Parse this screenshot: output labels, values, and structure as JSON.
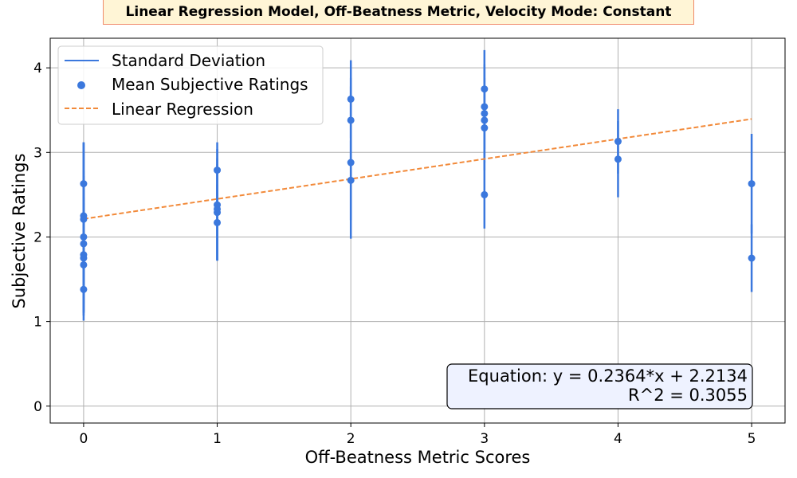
{
  "chart_data": {
    "type": "scatter",
    "title": "Linear Regression Model, Off-Beatness Metric, Velocity Mode: Constant",
    "xlabel": "Off-Beatness Metric Scores",
    "ylabel": "Subjective Ratings",
    "xlim": [
      -0.25,
      5.25
    ],
    "ylim": [
      -0.2,
      4.35
    ],
    "xticks": [
      0,
      1,
      2,
      3,
      4,
      5
    ],
    "yticks": [
      0,
      1,
      2,
      3,
      4
    ],
    "grid": true,
    "legend_position": "top-left",
    "legend": [
      "Standard Deviation",
      "Mean Subjective Ratings",
      "Linear Regression"
    ],
    "colors": {
      "points": "#3b78dd",
      "regression": "#f28a3a",
      "title_bg": "#fff5d6",
      "title_border": "#f08a6a",
      "eq_bg": "#eef2ff"
    },
    "series": [
      {
        "name": "Mean Subjective Ratings",
        "points": [
          {
            "x": 0,
            "y": 2.63,
            "sd": 0.49
          },
          {
            "x": 0,
            "y": 2.25,
            "sd": 0.87
          },
          {
            "x": 0,
            "y": 2.21,
            "sd": 0.9
          },
          {
            "x": 0,
            "y": 2.0,
            "sd": 0.78
          },
          {
            "x": 0,
            "y": 1.92,
            "sd": 0.8
          },
          {
            "x": 0,
            "y": 1.79,
            "sd": 0.68
          },
          {
            "x": 0,
            "y": 1.75,
            "sd": 0.65
          },
          {
            "x": 0,
            "y": 1.67,
            "sd": 0.6
          },
          {
            "x": 0,
            "y": 1.38,
            "sd": 0.37
          },
          {
            "x": 1,
            "y": 2.79,
            "sd": 0.33
          },
          {
            "x": 1,
            "y": 2.38,
            "sd": 0.66
          },
          {
            "x": 1,
            "y": 2.33,
            "sd": 0.6
          },
          {
            "x": 1,
            "y": 2.29,
            "sd": 0.57
          },
          {
            "x": 1,
            "y": 2.17,
            "sd": 0.45
          },
          {
            "x": 2,
            "y": 3.63,
            "sd": 0.46
          },
          {
            "x": 2,
            "y": 3.38,
            "sd": 0.5
          },
          {
            "x": 2,
            "y": 2.88,
            "sd": 0.9
          },
          {
            "x": 2,
            "y": 2.67,
            "sd": 0.47
          },
          {
            "x": 3,
            "y": 3.75,
            "sd": 0.46
          },
          {
            "x": 3,
            "y": 3.54,
            "sd": 0.5
          },
          {
            "x": 3,
            "y": 3.46,
            "sd": 0.55
          },
          {
            "x": 3,
            "y": 3.38,
            "sd": 0.5
          },
          {
            "x": 3,
            "y": 3.29,
            "sd": 0.5
          },
          {
            "x": 3,
            "y": 2.5,
            "sd": 0.4
          },
          {
            "x": 4,
            "y": 3.13,
            "sd": 0.38
          },
          {
            "x": 4,
            "y": 2.92,
            "sd": 0.45
          },
          {
            "x": 5,
            "y": 2.63,
            "sd": 0.59
          },
          {
            "x": 5,
            "y": 1.75,
            "sd": 0.4
          }
        ]
      }
    ],
    "regression": {
      "name": "Linear Regression",
      "slope": 0.2364,
      "intercept": 2.2134,
      "x_range": [
        0,
        5
      ]
    },
    "annotation": {
      "equation": "Equation: y = 0.2364*x + 2.2134",
      "r2": "R^2 = 0.3055"
    }
  }
}
